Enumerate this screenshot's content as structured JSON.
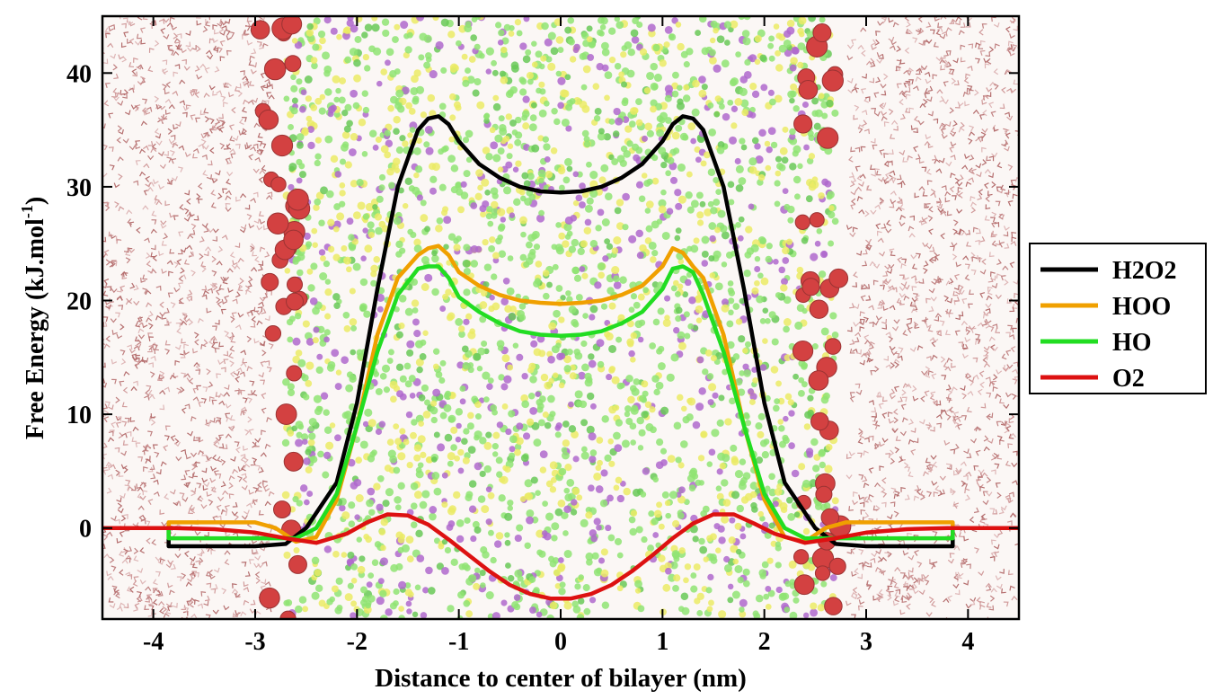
{
  "chart_data": {
    "type": "line",
    "xlabel": "Distance to center of bilayer (nm)",
    "ylabel_main": "Free Energy (kJ.mol",
    "ylabel_sup": "-1",
    "ylabel_close": ")",
    "xlim": [
      -4.5,
      4.5
    ],
    "ylim": [
      -8,
      45
    ],
    "xticks": [
      -4,
      -3,
      -2,
      -1,
      0,
      1,
      2,
      3,
      4
    ],
    "yticks": [
      0,
      10,
      20,
      30,
      40
    ],
    "legend_position": "right",
    "background": "molecular simulation rendering of lipid bilayer (water, headgroups, lipid tails)",
    "series": [
      {
        "name": "H2O2",
        "color": "#000000",
        "x": [
          -4.5,
          -3.85,
          -3.85,
          -3.0,
          -2.7,
          -2.5,
          -2.2,
          -2.0,
          -1.8,
          -1.6,
          -1.4,
          -1.3,
          -1.2,
          -1.1,
          -1.0,
          -0.8,
          -0.6,
          -0.4,
          -0.2,
          0.0,
          0.2,
          0.4,
          0.6,
          0.8,
          1.0,
          1.1,
          1.2,
          1.3,
          1.4,
          1.6,
          1.8,
          2.0,
          2.2,
          2.5,
          2.7,
          3.0,
          3.85,
          3.85,
          4.5
        ],
        "y": [
          0,
          0,
          -1.6,
          -1.6,
          -1.4,
          0,
          4,
          11,
          21,
          30,
          35,
          36,
          36.2,
          35.5,
          34,
          32,
          30.8,
          30,
          29.6,
          29.5,
          29.6,
          30,
          30.8,
          32,
          34,
          35.5,
          36.2,
          36,
          35,
          30,
          21,
          11,
          4,
          0,
          -1.4,
          -1.6,
          -1.6,
          0,
          0
        ]
      },
      {
        "name": "HOO",
        "color": "#f0a000",
        "x": [
          -4.5,
          -3.85,
          -3.85,
          -3.0,
          -2.8,
          -2.6,
          -2.4,
          -2.2,
          -2.0,
          -1.8,
          -1.6,
          -1.4,
          -1.3,
          -1.2,
          -1.1,
          -1.0,
          -0.8,
          -0.6,
          -0.4,
          -0.2,
          0.0,
          0.2,
          0.4,
          0.6,
          0.8,
          1.0,
          1.1,
          1.2,
          1.3,
          1.4,
          1.6,
          1.8,
          2.0,
          2.2,
          2.4,
          2.6,
          2.8,
          3.0,
          3.85,
          3.85,
          4.5
        ],
        "y": [
          0,
          0,
          0.5,
          0.5,
          0,
          -1.2,
          -0.8,
          2.5,
          9,
          17,
          22,
          24,
          24.6,
          24.8,
          24,
          22.5,
          21.3,
          20.5,
          20,
          19.8,
          19.7,
          19.8,
          20,
          20.5,
          21.3,
          23,
          24.6,
          24.2,
          23,
          22,
          17,
          9,
          2.5,
          -0.8,
          -1.2,
          0,
          0.5,
          0.5,
          0.5,
          0,
          0
        ]
      },
      {
        "name": "HO",
        "color": "#22dd22",
        "x": [
          -4.5,
          -3.85,
          -3.85,
          -3.0,
          -2.8,
          -2.6,
          -2.4,
          -2.2,
          -2.0,
          -1.8,
          -1.6,
          -1.4,
          -1.3,
          -1.2,
          -1.1,
          -1.0,
          -0.8,
          -0.6,
          -0.4,
          -0.2,
          0.0,
          0.2,
          0.4,
          0.6,
          0.8,
          1.0,
          1.1,
          1.2,
          1.3,
          1.4,
          1.6,
          1.8,
          2.0,
          2.2,
          2.4,
          2.6,
          2.8,
          3.0,
          3.85,
          3.85,
          4.5
        ],
        "y": [
          0,
          0,
          -0.9,
          -0.9,
          -0.9,
          -0.9,
          0,
          3,
          9,
          15.5,
          20.5,
          22.8,
          23,
          23,
          22,
          20.3,
          19,
          18,
          17.3,
          17,
          16.9,
          17,
          17.3,
          18,
          19,
          21,
          22.8,
          23,
          22.5,
          20.5,
          15.5,
          9,
          3,
          0,
          -0.9,
          -0.9,
          -0.9,
          -0.9,
          -0.9,
          0,
          0
        ]
      },
      {
        "name": "O2",
        "color": "#dd1111",
        "x": [
          -4.5,
          -3.8,
          -3.4,
          -3.0,
          -2.7,
          -2.4,
          -2.1,
          -1.9,
          -1.7,
          -1.5,
          -1.3,
          -1.1,
          -0.9,
          -0.7,
          -0.5,
          -0.3,
          -0.1,
          0.0,
          0.1,
          0.3,
          0.5,
          0.7,
          0.9,
          1.1,
          1.3,
          1.5,
          1.7,
          1.9,
          2.1,
          2.4,
          2.7,
          3.0,
          3.4,
          3.8,
          4.5
        ],
        "y": [
          0,
          0,
          -0.1,
          -0.4,
          -0.9,
          -1.3,
          -0.5,
          0.5,
          1.2,
          1.1,
          0.3,
          -1.0,
          -2.4,
          -3.8,
          -5.0,
          -5.8,
          -6.2,
          -6.2,
          -6.2,
          -5.8,
          -5.0,
          -3.8,
          -2.4,
          -0.9,
          0.4,
          1.2,
          1.2,
          0.4,
          -0.5,
          -1.3,
          -0.9,
          -0.4,
          -0.1,
          0,
          0
        ]
      }
    ]
  }
}
